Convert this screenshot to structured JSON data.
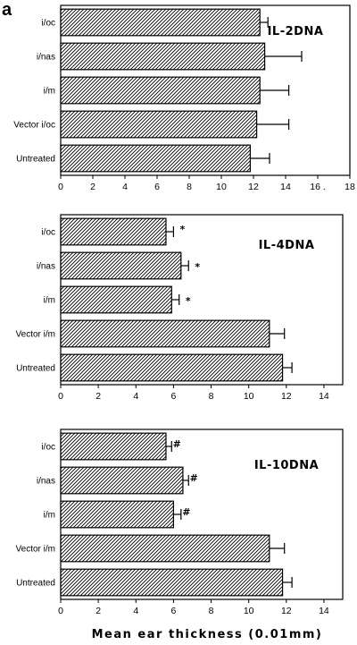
{
  "figure": {
    "panel_letter": "a",
    "xlabel": "Mean ear thickness (0.01mm)"
  },
  "chart_data": [
    {
      "type": "bar",
      "orientation": "horizontal",
      "title": "IL-2DNA",
      "categories": [
        "i/oc",
        "i/nas",
        "i/m",
        "Vector i/oc",
        "Untreated"
      ],
      "values": [
        12.4,
        12.7,
        12.4,
        12.2,
        11.8
      ],
      "errors": [
        0.5,
        2.3,
        1.8,
        2.0,
        1.2
      ],
      "markers": [
        "",
        "",
        "",
        "",
        ""
      ],
      "xlim": [
        0,
        18
      ],
      "ticks": [
        0,
        2,
        4,
        6,
        8,
        10,
        12,
        14,
        16,
        18
      ],
      "tick_labels": [
        "0",
        "2",
        "4",
        "6",
        "8",
        "10",
        "12",
        "14",
        "16 .",
        "18"
      ],
      "pattern": "diagonal-hatch",
      "grid": false
    },
    {
      "type": "bar",
      "orientation": "horizontal",
      "title": "IL-4DNA",
      "categories": [
        "i/oc",
        "i/nas",
        "i/m",
        "Vector i/m",
        "Untreated"
      ],
      "values": [
        5.6,
        6.4,
        5.9,
        11.1,
        11.8
      ],
      "errors": [
        0.4,
        0.4,
        0.4,
        0.8,
        0.5
      ],
      "markers": [
        "*",
        "*",
        "*",
        "",
        ""
      ],
      "xlim": [
        0,
        15
      ],
      "ticks": [
        0,
        2,
        4,
        6,
        8,
        10,
        12,
        14
      ],
      "tick_labels": [
        "0",
        "2",
        "4",
        "6",
        "8",
        "10",
        "12",
        "14"
      ],
      "pattern": "diagonal-hatch",
      "grid": false
    },
    {
      "type": "bar",
      "orientation": "horizontal",
      "title": "IL-10DNA",
      "categories": [
        "i/oc",
        "i/nas",
        "i/m",
        "Vector i/m",
        "Untreated"
      ],
      "values": [
        5.6,
        6.5,
        6.0,
        11.1,
        11.8
      ],
      "errors": [
        0.3,
        0.3,
        0.4,
        0.8,
        0.5
      ],
      "markers": [
        "#",
        "#",
        "#",
        "",
        ""
      ],
      "xlim": [
        0,
        15
      ],
      "ticks": [
        0,
        2,
        4,
        6,
        8,
        10,
        12,
        14
      ],
      "tick_labels": [
        "0",
        "2",
        "4",
        "6",
        "8",
        "10",
        "12",
        "14"
      ],
      "pattern": "diagonal-hatch",
      "grid": false
    }
  ]
}
